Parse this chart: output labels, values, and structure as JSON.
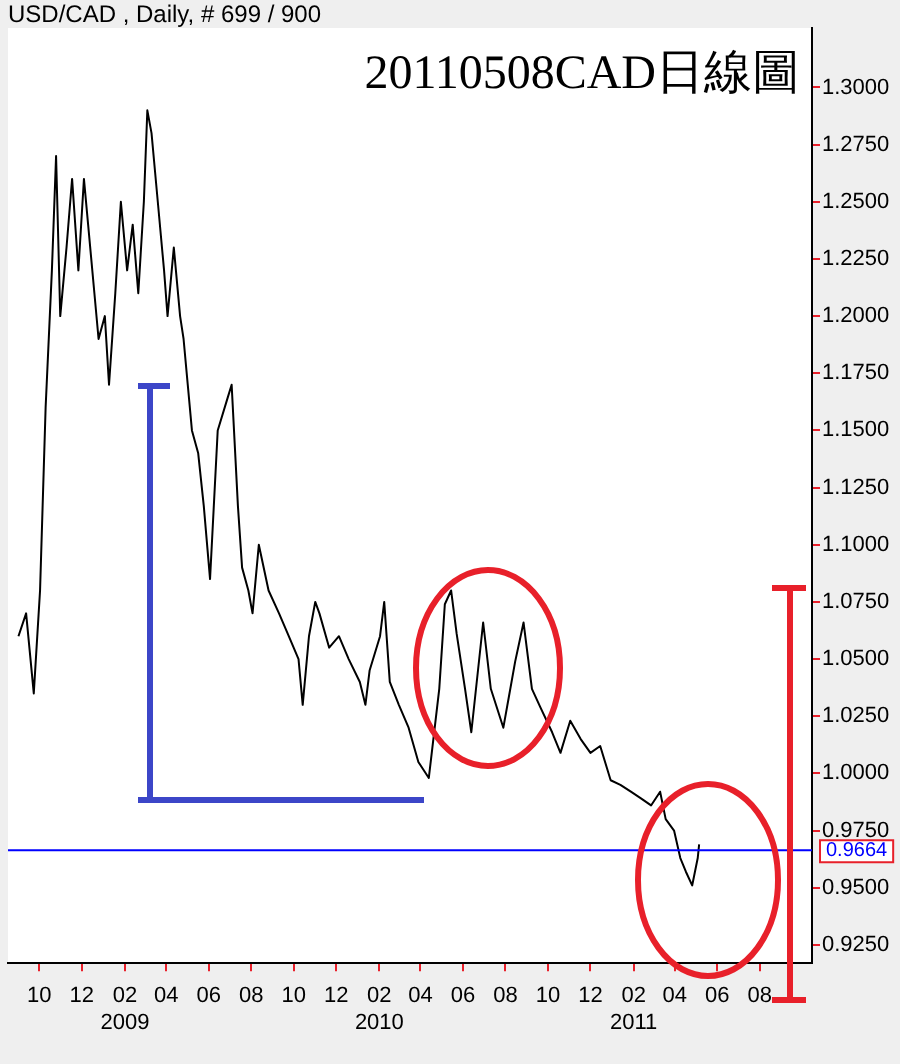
{
  "chart_data": {
    "type": "line",
    "title": "20110508CAD日線圖",
    "subtitle": "USD/CAD , Daily, # 699 / 900",
    "x": [
      "2008-09-01",
      "2008-09-12",
      "2008-09-23",
      "2008-10-02",
      "2008-10-10",
      "2008-10-19",
      "2008-10-25",
      "2008-10-31",
      "2008-11-09",
      "2008-11-17",
      "2008-11-26",
      "2008-12-04",
      "2008-12-10",
      "2008-12-19",
      "2008-12-25",
      "2009-01-03",
      "2009-01-09",
      "2009-01-18",
      "2009-01-26",
      "2009-02-04",
      "2009-02-12",
      "2009-02-20",
      "2009-02-28",
      "2009-03-05",
      "2009-03-11",
      "2009-03-20",
      "2009-03-29",
      "2009-04-03",
      "2009-04-12",
      "2009-04-21",
      "2009-04-26",
      "2009-05-02",
      "2009-05-08",
      "2009-05-17",
      "2009-05-25",
      "2009-06-03",
      "2009-06-14",
      "2009-06-29",
      "2009-07-04",
      "2009-07-13",
      "2009-07-19",
      "2009-07-28",
      "2009-08-03",
      "2009-08-12",
      "2009-08-26",
      "2009-09-10",
      "2009-09-24",
      "2009-10-08",
      "2009-10-14",
      "2009-10-23",
      "2009-11-01",
      "2009-11-07",
      "2009-11-21",
      "2009-12-05",
      "2009-12-19",
      "2010-01-04",
      "2010-01-12",
      "2010-01-18",
      "2010-02-02",
      "2010-02-08",
      "2010-02-16",
      "2010-03-01",
      "2010-03-15",
      "2010-03-29",
      "2010-04-13",
      "2010-04-28",
      "2010-05-06",
      "2010-05-15",
      "2010-05-23",
      "2010-06-04",
      "2010-06-13",
      "2010-06-30",
      "2010-07-11",
      "2010-07-29",
      "2010-08-15",
      "2010-08-27",
      "2010-09-08",
      "2010-09-20",
      "2010-10-07",
      "2010-10-19",
      "2010-11-02",
      "2010-11-17",
      "2010-12-01",
      "2010-12-15",
      "2010-12-30",
      "2011-01-13",
      "2011-01-28",
      "2011-02-12",
      "2011-02-26",
      "2011-03-11",
      "2011-03-19",
      "2011-03-31",
      "2011-04-09",
      "2011-04-17",
      "2011-04-26",
      "2011-05-04",
      "2011-05-06"
    ],
    "series": [
      {
        "color": "#000000",
        "values": [
          1.06,
          1.07,
          1.035,
          1.08,
          1.16,
          1.22,
          1.27,
          1.2,
          1.23,
          1.26,
          1.22,
          1.26,
          1.24,
          1.21,
          1.19,
          1.2,
          1.17,
          1.21,
          1.25,
          1.22,
          1.24,
          1.21,
          1.25,
          1.29,
          1.28,
          1.25,
          1.22,
          1.2,
          1.23,
          1.2,
          1.19,
          1.17,
          1.15,
          1.14,
          1.117,
          1.085,
          1.15,
          1.165,
          1.17,
          1.117,
          1.09,
          1.08,
          1.07,
          1.1,
          1.08,
          1.07,
          1.06,
          1.05,
          1.03,
          1.06,
          1.075,
          1.07,
          1.055,
          1.06,
          1.05,
          1.04,
          1.03,
          1.045,
          1.06,
          1.075,
          1.04,
          1.03,
          1.02,
          1.005,
          0.998,
          1.037,
          1.074,
          1.08,
          1.061,
          1.037,
          1.018,
          1.066,
          1.037,
          1.02,
          1.049,
          1.066,
          1.037,
          1.029,
          1.018,
          1.009,
          1.023,
          1.015,
          1.009,
          1.012,
          0.997,
          0.995,
          0.992,
          0.989,
          0.986,
          0.992,
          0.98,
          0.975,
          0.963,
          0.957,
          0.951,
          0.963,
          0.969
        ]
      }
    ],
    "xlim": [
      "2008-08-17",
      "2011-10-15"
    ],
    "xticks": [
      {
        "value": "2008-10-01",
        "label": "10"
      },
      {
        "value": "2008-12-01",
        "label": "12"
      },
      {
        "value": "2009-02-01",
        "label": "02\n2009"
      },
      {
        "value": "2009-04-01",
        "label": "04"
      },
      {
        "value": "2009-06-01",
        "label": "06"
      },
      {
        "value": "2009-08-01",
        "label": "08"
      },
      {
        "value": "2009-10-01",
        "label": "10"
      },
      {
        "value": "2009-12-01",
        "label": "12"
      },
      {
        "value": "2010-02-01",
        "label": "02\n2010"
      },
      {
        "value": "2010-04-01",
        "label": "04"
      },
      {
        "value": "2010-06-01",
        "label": "06"
      },
      {
        "value": "2010-08-01",
        "label": "08"
      },
      {
        "value": "2010-10-01",
        "label": "10"
      },
      {
        "value": "2010-12-01",
        "label": "12"
      },
      {
        "value": "2011-02-01",
        "label": "02\n2011"
      },
      {
        "value": "2011-04-01",
        "label": "04"
      },
      {
        "value": "2011-06-01",
        "label": "06"
      },
      {
        "value": "2011-08-01",
        "label": "08"
      }
    ],
    "ylim": [
      0.917,
      1.326
    ],
    "yticks": [
      {
        "value": 0.925,
        "label": "0.9250"
      },
      {
        "value": 0.95,
        "label": "0.9500"
      },
      {
        "value": 0.975,
        "label": "0.9750"
      },
      {
        "value": 1.0,
        "label": "1.0000"
      },
      {
        "value": 1.025,
        "label": "1.0250"
      },
      {
        "value": 1.05,
        "label": "1.0500"
      },
      {
        "value": 1.075,
        "label": "1.0750"
      },
      {
        "value": 1.1,
        "label": "1.1000"
      },
      {
        "value": 1.125,
        "label": "1.1250"
      },
      {
        "value": 1.15,
        "label": "1.1500"
      },
      {
        "value": 1.175,
        "label": "1.1750"
      },
      {
        "value": 1.2,
        "label": "1.2000"
      },
      {
        "value": 1.225,
        "label": "1.2250"
      },
      {
        "value": 1.25,
        "label": "1.2500"
      },
      {
        "value": 1.275,
        "label": "1.2750"
      },
      {
        "value": 1.3,
        "label": "1.3000"
      }
    ],
    "ref_lines": [
      {
        "axis": "y",
        "value": 0.9664,
        "label": "0.9664",
        "color": "#0000ff"
      }
    ],
    "grid": false,
    "legend": false,
    "marker": "none",
    "line_style": "solid"
  }
}
